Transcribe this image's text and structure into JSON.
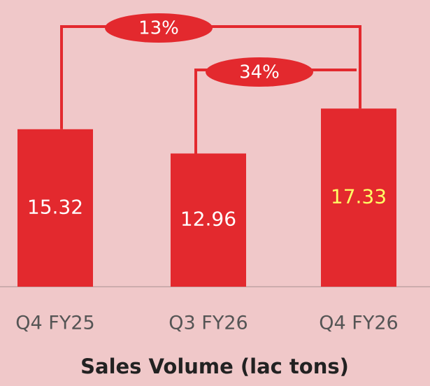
{
  "chart_data": {
    "type": "bar",
    "title": "Sales Volume (lac tons)",
    "categories": [
      "Q4 FY25",
      "Q3 FY26",
      "Q4 FY26"
    ],
    "values": [
      15.32,
      12.96,
      17.33
    ],
    "color": "#e3292e",
    "label_colors": [
      "#ffffff",
      "#ffffff",
      "#ffff66"
    ],
    "annotations": [
      "13%",
      "34%"
    ]
  }
}
